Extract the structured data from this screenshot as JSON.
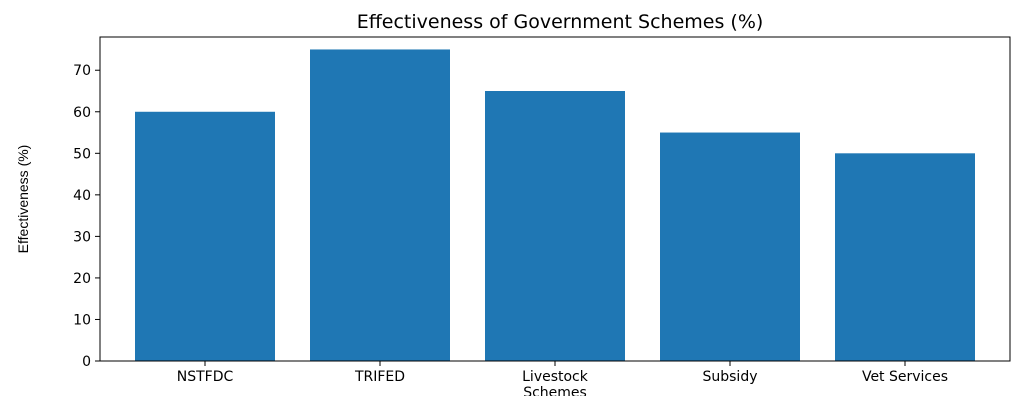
{
  "chart_data": {
    "type": "bar",
    "title": "Effectiveness of Government Schemes (%)",
    "xlabel": "",
    "ylabel": "Effectiveness (%)",
    "categories": [
      "NSTFDC",
      "TRIFED",
      "Livestock Schemes",
      "Subsidy",
      "Vet Services"
    ],
    "category_lines": [
      [
        "NSTFDC"
      ],
      [
        "TRIFED"
      ],
      [
        "Livestock",
        "Schemes"
      ],
      [
        "Subsidy"
      ],
      [
        "Vet Services"
      ]
    ],
    "values": [
      60,
      75,
      65,
      55,
      50
    ],
    "ylim": [
      0,
      78
    ],
    "yticks": [
      0,
      10,
      20,
      30,
      40,
      50,
      60,
      70
    ],
    "bar_color": "#1f77b4",
    "grid": false,
    "legend": "none"
  }
}
